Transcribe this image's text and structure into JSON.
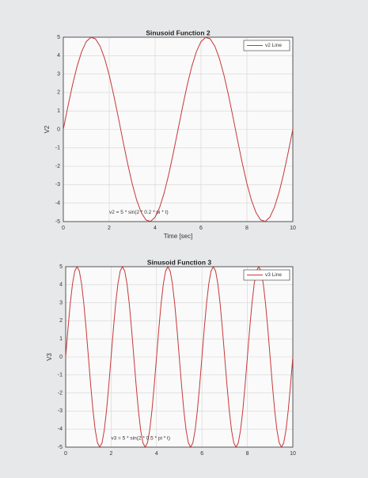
{
  "chart_data": [
    {
      "type": "line",
      "title": "Sinusoid Function 2",
      "xlabel": "Time [sec]",
      "ylabel": "V2",
      "annotation": "v2 = 5 * sin(2 * 0.2 * pi * t)",
      "x": [
        0,
        0.2,
        0.4,
        0.6,
        0.8,
        1,
        1.2,
        1.4,
        1.6,
        1.8,
        2,
        2.2,
        2.4,
        2.6,
        2.8,
        3,
        3.2,
        3.4,
        3.6,
        3.8,
        4,
        4.2,
        4.4,
        4.6,
        4.8,
        5,
        5.2,
        5.4,
        5.6,
        5.8,
        6,
        6.2,
        6.4,
        6.6,
        6.8,
        7,
        7.2,
        7.4,
        7.6,
        7.8,
        8,
        8.2,
        8.4,
        8.6,
        8.8,
        9,
        9.2,
        9.4,
        9.6,
        9.8,
        10
      ],
      "series": [
        {
          "name": "v2 Line",
          "color": "#c8373a",
          "values": [
            0,
            1.24,
            2.41,
            3.42,
            4.22,
            4.76,
            4.99,
            4.91,
            4.52,
            3.85,
            2.94,
            1.84,
            0.63,
            -0.63,
            -1.84,
            -2.94,
            -3.85,
            -4.52,
            -4.91,
            -4.99,
            -4.76,
            -4.22,
            -3.42,
            -2.41,
            -1.24,
            0,
            1.24,
            2.41,
            3.42,
            4.22,
            4.76,
            4.99,
            4.91,
            4.52,
            3.85,
            2.94,
            1.84,
            0.63,
            -0.63,
            -1.84,
            -2.94,
            -3.85,
            -4.52,
            -4.91,
            -4.99,
            -4.76,
            -4.22,
            -3.42,
            -2.41,
            -1.24,
            0
          ]
        }
      ],
      "xlim": [
        0,
        10
      ],
      "xticks": [
        0,
        2,
        4,
        6,
        8,
        10
      ],
      "ylim": [
        -5,
        5
      ],
      "yticks": [
        -5,
        -4,
        -3,
        -2,
        -1,
        0,
        1,
        2,
        3,
        4,
        5
      ],
      "grid": true,
      "legend": "northeast"
    },
    {
      "type": "line",
      "title": "Sinusoid Function 3",
      "ylabel": "V3",
      "annotation": "v3 = 5 * sin(2 * 0.5 * pi * t)",
      "x": [
        0,
        0.1,
        0.2,
        0.3,
        0.4,
        0.5,
        0.6,
        0.7,
        0.8,
        0.9,
        1,
        1.1,
        1.2,
        1.3,
        1.4,
        1.5,
        1.6,
        1.7,
        1.8,
        1.9,
        2,
        2.1,
        2.2,
        2.3,
        2.4,
        2.5,
        2.6,
        2.7,
        2.8,
        2.9,
        3,
        3.1,
        3.2,
        3.3,
        3.4,
        3.5,
        3.6,
        3.7,
        3.8,
        3.9,
        4,
        4.1,
        4.2,
        4.3,
        4.4,
        4.5,
        4.6,
        4.7,
        4.8,
        4.9,
        5,
        5.1,
        5.2,
        5.3,
        5.4,
        5.5,
        5.6,
        5.7,
        5.8,
        5.9,
        6,
        6.1,
        6.2,
        6.3,
        6.4,
        6.5,
        6.6,
        6.7,
        6.8,
        6.9,
        7,
        7.1,
        7.2,
        7.3,
        7.4,
        7.5,
        7.6,
        7.7,
        7.8,
        7.9,
        8,
        8.1,
        8.2,
        8.3,
        8.4,
        8.5,
        8.6,
        8.7,
        8.8,
        8.9,
        9,
        9.1,
        9.2,
        9.3,
        9.4,
        9.5,
        9.6,
        9.7,
        9.8,
        9.9,
        10
      ],
      "series": [
        {
          "name": "v3 Line",
          "color": "#c8373a",
          "values": [
            0,
            1.55,
            2.94,
            4.05,
            4.76,
            5,
            4.76,
            4.05,
            2.94,
            1.55,
            0,
            -1.55,
            -2.94,
            -4.05,
            -4.76,
            -5,
            -4.76,
            -4.05,
            -2.94,
            -1.55,
            0,
            1.55,
            2.94,
            4.05,
            4.76,
            5,
            4.76,
            4.05,
            2.94,
            1.55,
            0,
            -1.55,
            -2.94,
            -4.05,
            -4.76,
            -5,
            -4.76,
            -4.05,
            -2.94,
            -1.55,
            0,
            1.55,
            2.94,
            4.05,
            4.76,
            5,
            4.76,
            4.05,
            2.94,
            1.55,
            0,
            -1.55,
            -2.94,
            -4.05,
            -4.76,
            -5,
            -4.76,
            -4.05,
            -2.94,
            -1.55,
            0,
            1.55,
            2.94,
            4.05,
            4.76,
            5,
            4.76,
            4.05,
            2.94,
            1.55,
            0,
            -1.55,
            -2.94,
            -4.05,
            -4.76,
            -5,
            -4.76,
            -4.05,
            -2.94,
            -1.55,
            0,
            1.55,
            2.94,
            4.05,
            4.76,
            5,
            4.76,
            4.05,
            2.94,
            1.55,
            0,
            -1.55,
            -2.94,
            -4.05,
            -4.76,
            -5,
            -4.76,
            -4.05,
            -2.94,
            -1.55,
            0
          ]
        }
      ],
      "xlim": [
        0,
        10
      ],
      "xticks": [
        0,
        2,
        4,
        6,
        8,
        10
      ],
      "ylim": [
        -5,
        5
      ],
      "yticks": [
        -5,
        -4,
        -3,
        -2,
        -1,
        0,
        1,
        2,
        3,
        4,
        5
      ],
      "grid": true,
      "legend": "northeast"
    }
  ]
}
